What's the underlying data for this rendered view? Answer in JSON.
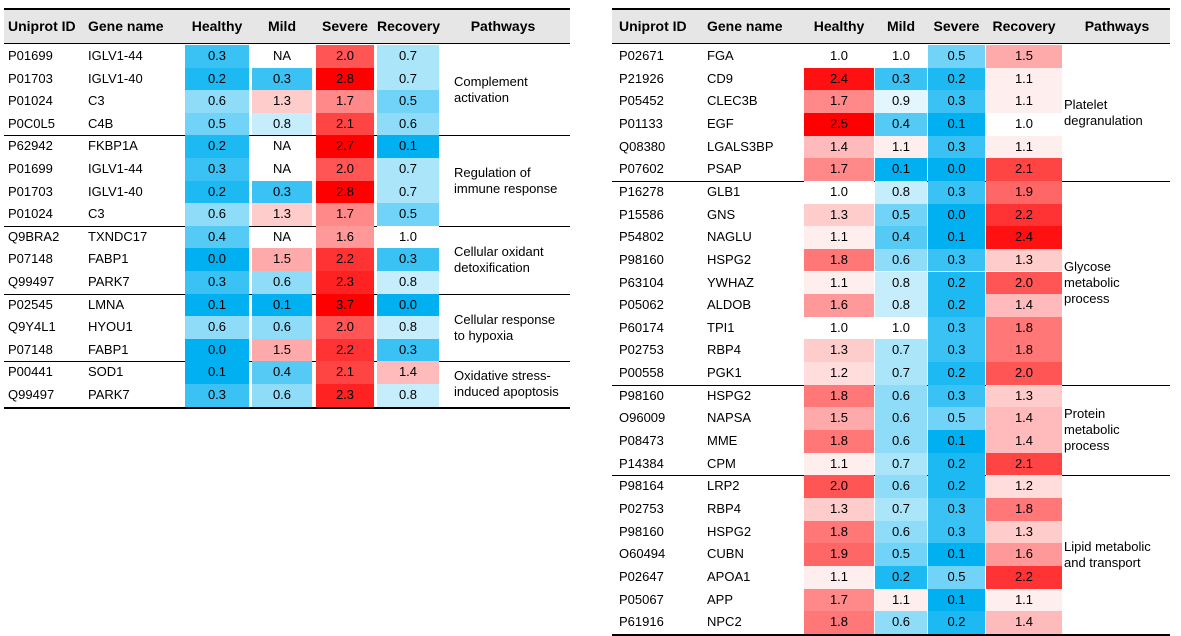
{
  "chart_data": {
    "type": "table",
    "colors": {
      "header_bg": "#e6e6e6",
      "high_red": "#ff0000",
      "low_blue": "#00b0f0",
      "neutral": "#ffffff"
    },
    "tables": [
      {
        "columns": [
          "Uniprot ID",
          "Gene name",
          "Healthy",
          "Mild",
          "Severe",
          "Recovery",
          "Pathways"
        ],
        "groups": [
          {
            "pathway": [
              "Complement",
              "activation"
            ],
            "rows": [
              [
                "P01699",
                "IGLV1-44",
                "0.3",
                "NA",
                "2.0",
                "0.7"
              ],
              [
                "P01703",
                "IGLV1-40",
                "0.2",
                "0.3",
                "2.8",
                "0.7"
              ],
              [
                "P01024",
                "C3",
                "0.6",
                "1.3",
                "1.7",
                "0.5"
              ],
              [
                "P0C0L5",
                "C4B",
                "0.5",
                "0.8",
                "2.1",
                "0.6"
              ]
            ]
          },
          {
            "pathway": [
              "Regulation of",
              "immune response"
            ],
            "rows": [
              [
                "P62942",
                "FKBP1A",
                "0.2",
                "NA",
                "2.7",
                "0.1"
              ],
              [
                "P01699",
                "IGLV1-44",
                "0.3",
                "NA",
                "2.0",
                "0.7"
              ],
              [
                "P01703",
                "IGLV1-40",
                "0.2",
                "0.3",
                "2.8",
                "0.7"
              ],
              [
                "P01024",
                "C3",
                "0.6",
                "1.3",
                "1.7",
                "0.5"
              ]
            ]
          },
          {
            "pathway": [
              "Cellular oxidant",
              "detoxification"
            ],
            "rows": [
              [
                "Q9BRA2",
                "TXNDC17",
                "0.4",
                "NA",
                "1.6",
                "1.0"
              ],
              [
                "P07148",
                "FABP1",
                "0.0",
                "1.5",
                "2.2",
                "0.3"
              ],
              [
                "Q99497",
                "PARK7",
                "0.3",
                "0.6",
                "2.3",
                "0.8"
              ]
            ]
          },
          {
            "pathway": [
              "Cellular response",
              "to hypoxia"
            ],
            "rows": [
              [
                "P02545",
                "LMNA",
                "0.1",
                "0.1",
                "3.7",
                "0.0"
              ],
              [
                "Q9Y4L1",
                "HYOU1",
                "0.6",
                "0.6",
                "2.0",
                "0.8"
              ],
              [
                "P07148",
                "FABP1",
                "0.0",
                "1.5",
                "2.2",
                "0.3"
              ]
            ]
          },
          {
            "pathway": [
              "Oxidative stress-",
              "induced apoptosis"
            ],
            "rows": [
              [
                "P00441",
                "SOD1",
                "0.1",
                "0.4",
                "2.1",
                "1.4"
              ],
              [
                "Q99497",
                "PARK7",
                "0.3",
                "0.6",
                "2.3",
                "0.8"
              ]
            ]
          }
        ]
      },
      {
        "columns": [
          "Uniprot ID",
          "Gene name",
          "Healthy",
          "Mild",
          "Severe",
          "Recovery",
          "Pathways"
        ],
        "groups": [
          {
            "pathway": [
              "Platelet",
              "degranulation"
            ],
            "rows": [
              [
                "P02671",
                "FGA",
                "1.0",
                "1.0",
                "0.5",
                "1.5"
              ],
              [
                "P21926",
                "CD9",
                "2.4",
                "0.3",
                "0.2",
                "1.1"
              ],
              [
                "P05452",
                "CLEC3B",
                "1.7",
                "0.9",
                "0.3",
                "1.1"
              ],
              [
                "P01133",
                "EGF",
                "2.5",
                "0.4",
                "0.1",
                "1.0"
              ],
              [
                "Q08380",
                "LGALS3BP",
                "1.4",
                "1.1",
                "0.3",
                "1.1"
              ],
              [
                "P07602",
                "PSAP",
                "1.7",
                "0.1",
                "0.0",
                "2.1"
              ]
            ]
          },
          {
            "pathway": [
              "Glycose",
              "metabolic",
              "process"
            ],
            "rows": [
              [
                "P16278",
                "GLB1",
                "1.0",
                "0.8",
                "0.3",
                "1.9"
              ],
              [
                "P15586",
                "GNS",
                "1.3",
                "0.5",
                "0.0",
                "2.2"
              ],
              [
                "P54802",
                "NAGLU",
                "1.1",
                "0.4",
                "0.1",
                "2.4"
              ],
              [
                "P98160",
                "HSPG2",
                "1.8",
                "0.6",
                "0.3",
                "1.3"
              ],
              [
                "P63104",
                "YWHAZ",
                "1.1",
                "0.8",
                "0.2",
                "2.0"
              ],
              [
                "P05062",
                "ALDOB",
                "1.6",
                "0.8",
                "0.2",
                "1.4"
              ],
              [
                "P60174",
                "TPI1",
                "1.0",
                "1.0",
                "0.3",
                "1.8"
              ],
              [
                "P02753",
                "RBP4",
                "1.3",
                "0.7",
                "0.3",
                "1.8"
              ],
              [
                "P00558",
                "PGK1",
                "1.2",
                "0.7",
                "0.2",
                "2.0"
              ]
            ]
          },
          {
            "pathway": [
              "Protein",
              "metabolic",
              "process"
            ],
            "rows": [
              [
                "P98160",
                "HSPG2",
                "1.8",
                "0.6",
                "0.3",
                "1.3"
              ],
              [
                "O96009",
                "NAPSA",
                "1.5",
                "0.6",
                "0.5",
                "1.4"
              ],
              [
                "P08473",
                "MME",
                "1.8",
                "0.6",
                "0.1",
                "1.4"
              ],
              [
                "P14384",
                "CPM",
                "1.1",
                "0.7",
                "0.2",
                "2.1"
              ]
            ]
          },
          {
            "pathway": [
              "Lipid metabolic",
              "and transport"
            ],
            "rows": [
              [
                "P98164",
                "LRP2",
                "2.0",
                "0.6",
                "0.2",
                "1.2"
              ],
              [
                "P02753",
                "RBP4",
                "1.3",
                "0.7",
                "0.3",
                "1.8"
              ],
              [
                "P98160",
                "HSPG2",
                "1.8",
                "0.6",
                "0.3",
                "1.3"
              ],
              [
                "O60494",
                "CUBN",
                "1.9",
                "0.5",
                "0.1",
                "1.6"
              ],
              [
                "P02647",
                "APOA1",
                "1.1",
                "0.2",
                "0.5",
                "2.2"
              ],
              [
                "P05067",
                "APP",
                "1.7",
                "1.1",
                "0.1",
                "1.1"
              ],
              [
                "P61916",
                "NPC2",
                "1.8",
                "0.6",
                "0.2",
                "1.4"
              ]
            ]
          }
        ]
      }
    ]
  }
}
